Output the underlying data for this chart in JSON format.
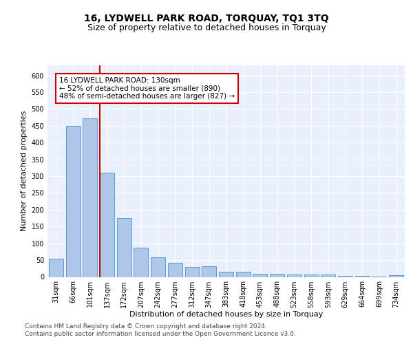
{
  "title": "16, LYDWELL PARK ROAD, TORQUAY, TQ1 3TQ",
  "subtitle": "Size of property relative to detached houses in Torquay",
  "xlabel": "Distribution of detached houses by size in Torquay",
  "ylabel": "Number of detached properties",
  "categories": [
    "31sqm",
    "66sqm",
    "101sqm",
    "137sqm",
    "172sqm",
    "207sqm",
    "242sqm",
    "277sqm",
    "312sqm",
    "347sqm",
    "383sqm",
    "418sqm",
    "453sqm",
    "488sqm",
    "523sqm",
    "558sqm",
    "593sqm",
    "629sqm",
    "664sqm",
    "699sqm",
    "734sqm"
  ],
  "values": [
    55,
    450,
    472,
    311,
    176,
    88,
    58,
    42,
    30,
    31,
    15,
    15,
    10,
    9,
    7,
    7,
    8,
    4,
    4,
    2,
    5
  ],
  "bar_color": "#aec6e8",
  "bar_edge_color": "#5b9bd5",
  "vline_color": "#cc0000",
  "annotation_text": "16 LYDWELL PARK ROAD: 130sqm\n← 52% of detached houses are smaller (890)\n48% of semi-detached houses are larger (827) →",
  "annotation_box_color": "#ffffff",
  "annotation_box_edge": "#cc0000",
  "ylim": [
    0,
    630
  ],
  "yticks": [
    0,
    50,
    100,
    150,
    200,
    250,
    300,
    350,
    400,
    450,
    500,
    550,
    600
  ],
  "bg_color": "#eaf0fb",
  "grid_color": "#ffffff",
  "footer_line1": "Contains HM Land Registry data © Crown copyright and database right 2024.",
  "footer_line2": "Contains public sector information licensed under the Open Government Licence v3.0.",
  "title_fontsize": 10,
  "subtitle_fontsize": 9,
  "axis_label_fontsize": 8,
  "tick_fontsize": 7,
  "annotation_fontsize": 7.5,
  "footer_fontsize": 6.5
}
